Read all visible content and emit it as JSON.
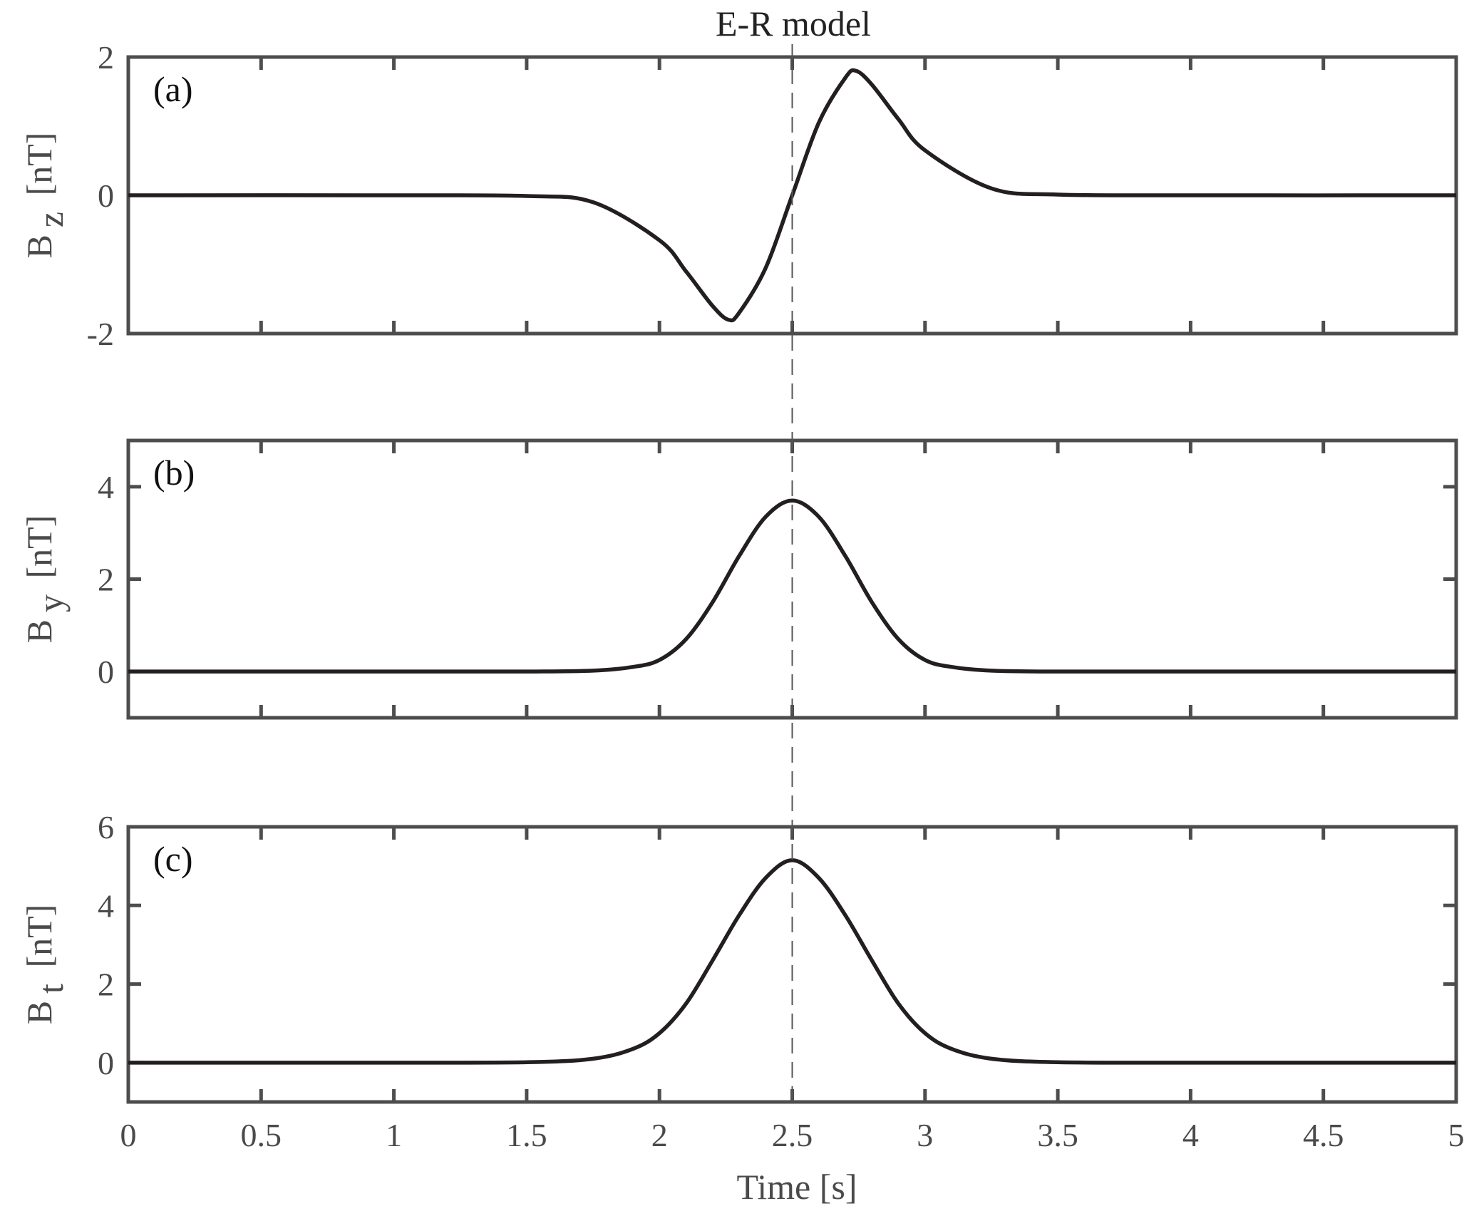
{
  "chart_data": [
    {
      "type": "line",
      "panel_label": "(a)",
      "title": "E-R model",
      "ylabel": "B",
      "ylabel_sub": "z",
      "ylabel_unit": "[nT]",
      "xlabel": "",
      "xlim": [
        0,
        5
      ],
      "ylim": [
        -2,
        2
      ],
      "yticks": [
        "-2",
        "0",
        "2"
      ],
      "ytick_values": [
        -2,
        0,
        2
      ],
      "x": [
        0,
        1.0,
        1.5,
        1.75,
        2.0,
        2.1,
        2.2,
        2.26,
        2.3,
        2.4,
        2.5,
        2.6,
        2.7,
        2.74,
        2.8,
        2.9,
        3.0,
        3.25,
        3.5,
        4.0,
        5.0
      ],
      "series": [
        {
          "values": [
            0,
            0,
            -0.01,
            -0.1,
            -0.65,
            -1.1,
            -1.6,
            -1.8,
            -1.7,
            -1.05,
            0,
            1.05,
            1.7,
            1.8,
            1.6,
            1.1,
            0.65,
            0.1,
            0.01,
            0,
            0
          ]
        }
      ],
      "vline_x": 2.5
    },
    {
      "type": "line",
      "panel_label": "(b)",
      "ylabel": "B",
      "ylabel_sub": "y",
      "ylabel_unit": "[nT]",
      "xlabel": "",
      "xlim": [
        0,
        5
      ],
      "ylim": [
        -1,
        5
      ],
      "yticks": [
        "0",
        "2",
        "4"
      ],
      "ytick_values": [
        0,
        2,
        4
      ],
      "x": [
        0,
        1.0,
        1.5,
        1.75,
        1.9,
        2.0,
        2.1,
        2.2,
        2.3,
        2.4,
        2.5,
        2.6,
        2.7,
        2.8,
        2.9,
        3.0,
        3.1,
        3.25,
        3.5,
        4.0,
        5.0
      ],
      "series": [
        {
          "values": [
            0,
            0,
            0,
            0.02,
            0.1,
            0.25,
            0.7,
            1.5,
            2.5,
            3.35,
            3.7,
            3.35,
            2.5,
            1.5,
            0.7,
            0.25,
            0.1,
            0.02,
            0,
            0,
            0
          ]
        }
      ],
      "vline_x": 2.5
    },
    {
      "type": "line",
      "panel_label": "(c)",
      "ylabel": "B",
      "ylabel_sub": "t",
      "ylabel_unit": "[nT]",
      "xlabel": "Time [s]",
      "xlim": [
        0,
        5
      ],
      "ylim": [
        -1,
        6
      ],
      "yticks": [
        "0",
        "2",
        "4",
        "6"
      ],
      "ytick_values": [
        0,
        2,
        4,
        6
      ],
      "xticks": [
        "0",
        "0.5",
        "1",
        "1.5",
        "2",
        "2.5",
        "3",
        "3.5",
        "4",
        "4.5",
        "5"
      ],
      "xtick_values": [
        0,
        0.5,
        1,
        1.5,
        2,
        2.5,
        3,
        3.5,
        4,
        4.5,
        5
      ],
      "x": [
        0,
        1.0,
        1.5,
        1.75,
        1.9,
        2.0,
        2.1,
        2.2,
        2.3,
        2.4,
        2.5,
        2.6,
        2.7,
        2.8,
        2.9,
        3.0,
        3.1,
        3.25,
        3.5,
        4.0,
        5.0
      ],
      "series": [
        {
          "values": [
            0,
            0,
            0.01,
            0.1,
            0.35,
            0.75,
            1.5,
            2.6,
            3.75,
            4.7,
            5.15,
            4.7,
            3.75,
            2.6,
            1.5,
            0.75,
            0.35,
            0.1,
            0.01,
            0,
            0
          ]
        }
      ],
      "vline_x": 2.5
    }
  ],
  "colors": {
    "curve": "#231f20",
    "axes": "#4d4d4d",
    "dashed_line": "#555555"
  }
}
